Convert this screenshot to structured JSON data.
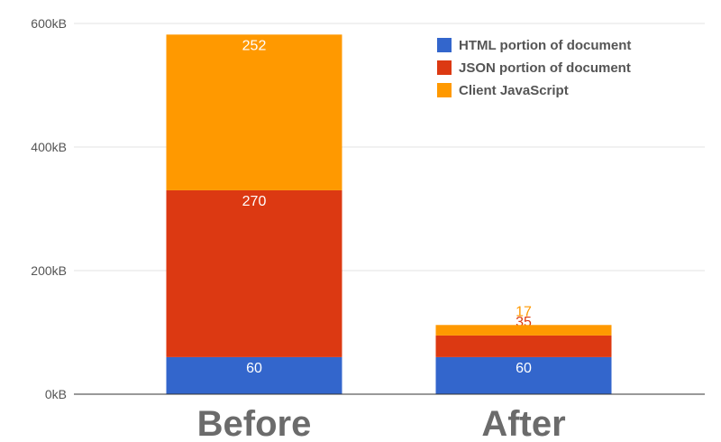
{
  "chart_data": {
    "type": "bar",
    "stacked": true,
    "categories": [
      "Before",
      "After"
    ],
    "series": [
      {
        "name": "HTML portion of document",
        "values": [
          60,
          60
        ],
        "color": "#3366cc",
        "value_labels": [
          "60",
          "60"
        ]
      },
      {
        "name": "JSON portion of document",
        "values": [
          270,
          35
        ],
        "color": "#dc3912",
        "value_labels": [
          "270",
          "35"
        ]
      },
      {
        "name": "Client JavaScript",
        "values": [
          252,
          17
        ],
        "color": "#ff9900",
        "value_labels": [
          "252",
          "17"
        ]
      }
    ],
    "ylim": [
      0,
      600
    ],
    "yticks": [
      0,
      200,
      400,
      600
    ],
    "ytick_labels": [
      "0kB",
      "200kB",
      "400kB",
      "600kB"
    ],
    "grid": true,
    "legend_position": "top-right",
    "title": "",
    "xlabel": "",
    "ylabel": ""
  }
}
